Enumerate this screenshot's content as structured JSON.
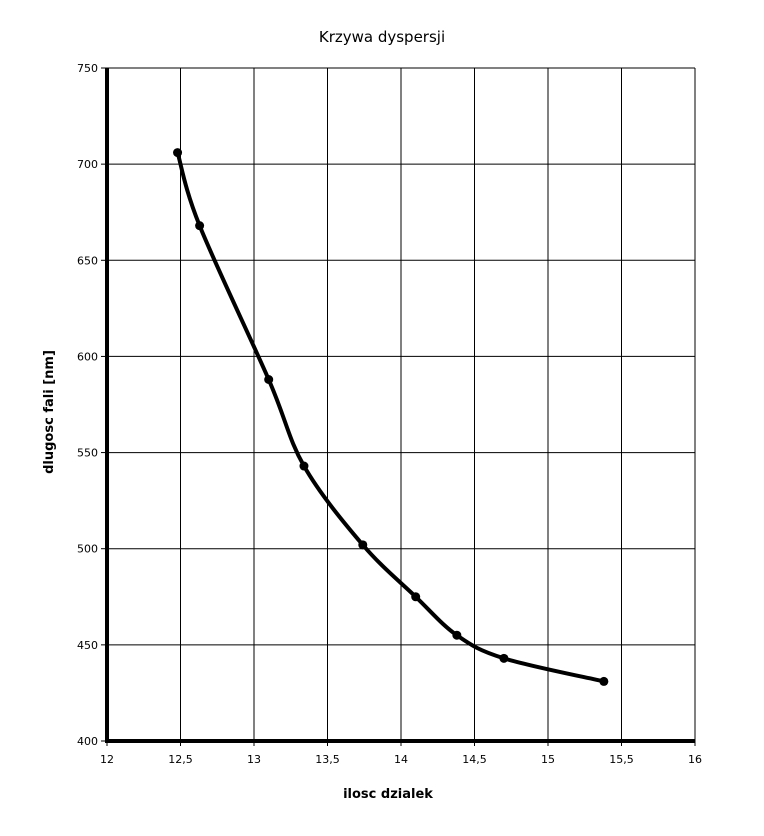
{
  "chart_data": {
    "type": "line",
    "title": "Krzywa dyspersji",
    "xlabel": "ilosc dzialek",
    "ylabel": "dlugosc fali [nm]",
    "xlim": [
      12,
      16
    ],
    "ylim": [
      400,
      750
    ],
    "x_ticks": [
      "12",
      "12,5",
      "13",
      "13,5",
      "14",
      "14,5",
      "15",
      "15,5",
      "16"
    ],
    "y_ticks": [
      "400",
      "450",
      "500",
      "550",
      "600",
      "650",
      "700",
      "750"
    ],
    "grid": true,
    "legend": "none",
    "series": [
      {
        "marker": "circle",
        "smooth": true,
        "color": "#000000",
        "points": [
          {
            "x": 12.48,
            "y": 706
          },
          {
            "x": 12.63,
            "y": 668
          },
          {
            "x": 13.1,
            "y": 588
          },
          {
            "x": 13.34,
            "y": 543
          },
          {
            "x": 13.74,
            "y": 502
          },
          {
            "x": 14.1,
            "y": 475
          },
          {
            "x": 14.38,
            "y": 455
          },
          {
            "x": 14.7,
            "y": 443
          },
          {
            "x": 15.38,
            "y": 431
          }
        ]
      }
    ]
  }
}
